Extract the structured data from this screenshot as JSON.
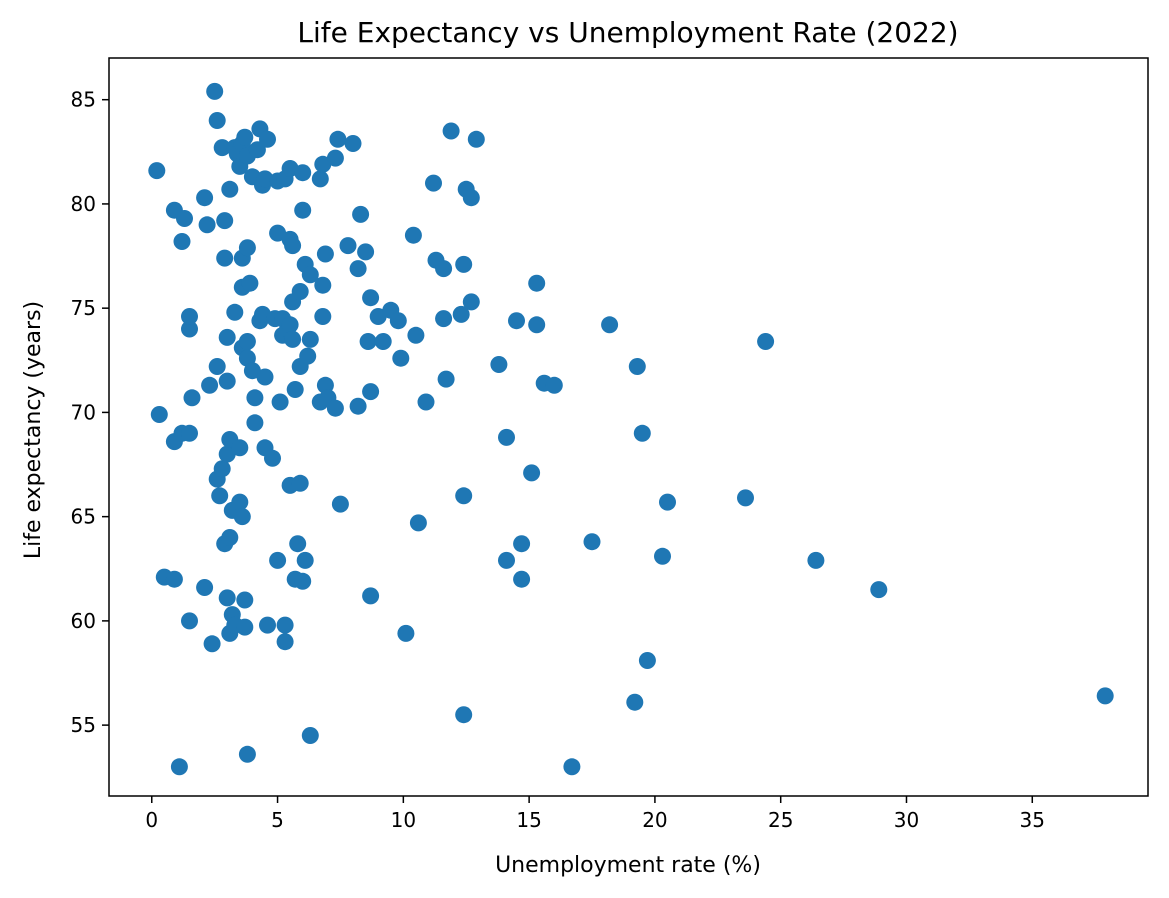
{
  "chart_data": {
    "type": "scatter",
    "title": "Life Expectancy vs Unemployment Rate (2022)",
    "xlabel": "Unemployment rate (%)",
    "ylabel": "Life expectancy (years)",
    "xlim": [
      -1.7,
      39.6
    ],
    "ylim": [
      51.6,
      87.0
    ],
    "xticks": [
      0,
      5,
      10,
      15,
      20,
      25,
      30,
      35
    ],
    "yticks": [
      55,
      60,
      65,
      70,
      75,
      80,
      85
    ],
    "grid": false,
    "legend": "none",
    "marker_color": "#1f77b4",
    "points": [
      [
        0.2,
        81.6
      ],
      [
        0.3,
        69.9
      ],
      [
        0.5,
        62.1
      ],
      [
        0.9,
        62.0
      ],
      [
        0.9,
        68.6
      ],
      [
        0.9,
        79.7
      ],
      [
        1.1,
        53.0
      ],
      [
        1.2,
        69.0
      ],
      [
        1.2,
        78.2
      ],
      [
        1.3,
        79.3
      ],
      [
        1.5,
        60.0
      ],
      [
        1.5,
        69.0
      ],
      [
        1.5,
        74.0
      ],
      [
        1.5,
        74.6
      ],
      [
        1.6,
        70.7
      ],
      [
        2.1,
        61.6
      ],
      [
        2.1,
        80.3
      ],
      [
        2.2,
        79.0
      ],
      [
        2.3,
        71.3
      ],
      [
        2.4,
        58.9
      ],
      [
        2.5,
        85.4
      ],
      [
        2.6,
        66.8
      ],
      [
        2.6,
        72.2
      ],
      [
        2.6,
        84.0
      ],
      [
        2.7,
        66.0
      ],
      [
        2.8,
        67.3
      ],
      [
        2.8,
        82.7
      ],
      [
        2.9,
        63.7
      ],
      [
        2.9,
        77.4
      ],
      [
        2.9,
        79.2
      ],
      [
        3.0,
        61.1
      ],
      [
        3.0,
        68.0
      ],
      [
        3.0,
        71.5
      ],
      [
        3.0,
        73.6
      ],
      [
        3.1,
        59.4
      ],
      [
        3.1,
        64.0
      ],
      [
        3.1,
        68.7
      ],
      [
        3.1,
        80.7
      ],
      [
        3.2,
        60.3
      ],
      [
        3.2,
        65.3
      ],
      [
        3.3,
        59.8
      ],
      [
        3.3,
        74.8
      ],
      [
        3.3,
        82.7
      ],
      [
        3.4,
        82.4
      ],
      [
        3.5,
        65.7
      ],
      [
        3.5,
        68.3
      ],
      [
        3.5,
        81.8
      ],
      [
        3.6,
        65.0
      ],
      [
        3.6,
        73.1
      ],
      [
        3.6,
        76.0
      ],
      [
        3.6,
        77.4
      ],
      [
        3.6,
        82.9
      ],
      [
        3.7,
        59.7
      ],
      [
        3.7,
        61.0
      ],
      [
        3.7,
        83.2
      ],
      [
        3.8,
        72.6
      ],
      [
        3.8,
        73.4
      ],
      [
        3.8,
        77.9
      ],
      [
        3.8,
        53.6
      ],
      [
        3.8,
        82.3
      ],
      [
        3.9,
        76.2
      ],
      [
        4.0,
        72.0
      ],
      [
        4.0,
        81.3
      ],
      [
        4.1,
        70.7
      ],
      [
        4.1,
        69.5
      ],
      [
        4.2,
        82.6
      ],
      [
        4.3,
        74.4
      ],
      [
        4.3,
        83.6
      ],
      [
        4.4,
        74.7
      ],
      [
        4.4,
        80.9
      ],
      [
        4.5,
        68.3
      ],
      [
        4.5,
        71.7
      ],
      [
        4.5,
        81.2
      ],
      [
        4.6,
        59.8
      ],
      [
        4.6,
        83.1
      ],
      [
        4.8,
        67.8
      ],
      [
        4.9,
        74.5
      ],
      [
        5.0,
        62.9
      ],
      [
        5.0,
        78.6
      ],
      [
        5.0,
        81.1
      ],
      [
        5.1,
        70.5
      ],
      [
        5.2,
        74.5
      ],
      [
        5.2,
        73.7
      ],
      [
        5.3,
        59.0
      ],
      [
        5.3,
        59.8
      ],
      [
        5.3,
        81.2
      ],
      [
        5.4,
        74.0
      ],
      [
        5.5,
        66.5
      ],
      [
        5.5,
        78.3
      ],
      [
        5.5,
        74.2
      ],
      [
        5.5,
        81.7
      ],
      [
        5.6,
        73.5
      ],
      [
        5.6,
        75.3
      ],
      [
        5.6,
        78.0
      ],
      [
        5.7,
        62.0
      ],
      [
        5.7,
        71.1
      ],
      [
        5.8,
        63.7
      ],
      [
        5.9,
        66.6
      ],
      [
        5.9,
        72.2
      ],
      [
        5.9,
        75.8
      ],
      [
        6.0,
        61.9
      ],
      [
        6.0,
        79.7
      ],
      [
        6.0,
        81.5
      ],
      [
        6.1,
        62.9
      ],
      [
        6.1,
        77.1
      ],
      [
        6.2,
        72.7
      ],
      [
        6.3,
        54.5
      ],
      [
        6.3,
        73.5
      ],
      [
        6.3,
        76.6
      ],
      [
        6.7,
        70.5
      ],
      [
        6.7,
        81.2
      ],
      [
        6.8,
        74.6
      ],
      [
        6.8,
        76.1
      ],
      [
        6.8,
        81.9
      ],
      [
        6.9,
        77.6
      ],
      [
        6.9,
        71.3
      ],
      [
        7.0,
        70.7
      ],
      [
        7.3,
        70.2
      ],
      [
        7.3,
        82.2
      ],
      [
        7.4,
        83.1
      ],
      [
        7.5,
        65.6
      ],
      [
        7.8,
        78.0
      ],
      [
        8.0,
        82.9
      ],
      [
        8.2,
        70.3
      ],
      [
        8.2,
        76.9
      ],
      [
        8.3,
        79.5
      ],
      [
        8.5,
        77.7
      ],
      [
        8.6,
        73.4
      ],
      [
        8.7,
        75.5
      ],
      [
        8.7,
        61.2
      ],
      [
        8.7,
        71.0
      ],
      [
        9.0,
        74.6
      ],
      [
        9.2,
        73.4
      ],
      [
        9.5,
        74.9
      ],
      [
        9.8,
        74.4
      ],
      [
        9.9,
        72.6
      ],
      [
        10.1,
        59.4
      ],
      [
        10.4,
        78.5
      ],
      [
        10.5,
        73.7
      ],
      [
        10.6,
        64.7
      ],
      [
        10.9,
        70.5
      ],
      [
        11.2,
        81.0
      ],
      [
        11.3,
        77.3
      ],
      [
        11.6,
        74.5
      ],
      [
        11.6,
        76.9
      ],
      [
        11.7,
        71.6
      ],
      [
        11.9,
        83.5
      ],
      [
        12.3,
        74.7
      ],
      [
        12.4,
        55.5
      ],
      [
        12.4,
        66.0
      ],
      [
        12.4,
        77.1
      ],
      [
        12.5,
        80.7
      ],
      [
        12.7,
        75.3
      ],
      [
        12.7,
        80.3
      ],
      [
        12.9,
        83.1
      ],
      [
        13.8,
        72.3
      ],
      [
        14.1,
        62.9
      ],
      [
        14.1,
        68.8
      ],
      [
        14.5,
        74.4
      ],
      [
        14.7,
        63.7
      ],
      [
        14.7,
        62.0
      ],
      [
        15.1,
        67.1
      ],
      [
        15.3,
        76.2
      ],
      [
        15.3,
        74.2
      ],
      [
        15.6,
        71.4
      ],
      [
        16.0,
        71.3
      ],
      [
        16.7,
        53.0
      ],
      [
        17.5,
        63.8
      ],
      [
        18.2,
        74.2
      ],
      [
        19.2,
        56.1
      ],
      [
        19.3,
        72.2
      ],
      [
        19.5,
        69.0
      ],
      [
        19.7,
        58.1
      ],
      [
        20.3,
        63.1
      ],
      [
        20.5,
        65.7
      ],
      [
        23.6,
        65.9
      ],
      [
        24.4,
        73.4
      ],
      [
        26.4,
        62.9
      ],
      [
        28.9,
        61.5
      ],
      [
        37.9,
        56.4
      ]
    ]
  }
}
